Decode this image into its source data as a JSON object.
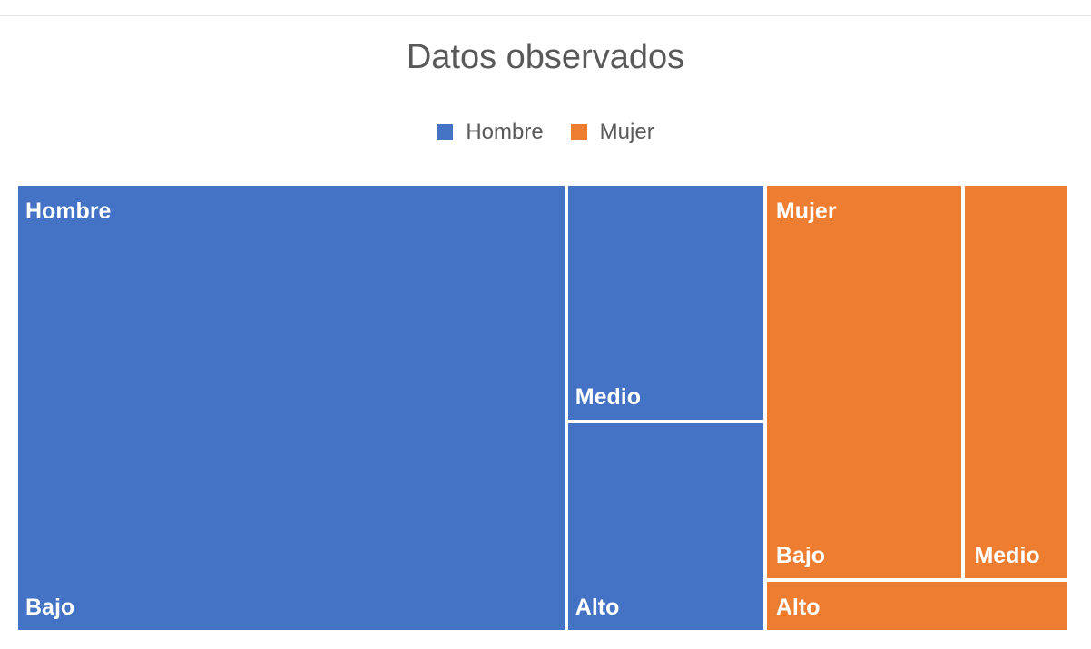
{
  "chart_data": {
    "type": "treemap",
    "title": "Datos observados",
    "legend_position": "top",
    "series": [
      {
        "name": "Hombre",
        "color": "#4472C4",
        "children": [
          {
            "name": "Bajo",
            "value": 47
          },
          {
            "name": "Medio",
            "value": 9
          },
          {
            "name": "Alto",
            "value": 8
          }
        ]
      },
      {
        "name": "Mujer",
        "color": "#ED7D31",
        "children": [
          {
            "name": "Bajo",
            "value": 15
          },
          {
            "name": "Medio",
            "value": 8
          },
          {
            "name": "Alto",
            "value": 3
          }
        ]
      }
    ]
  }
}
